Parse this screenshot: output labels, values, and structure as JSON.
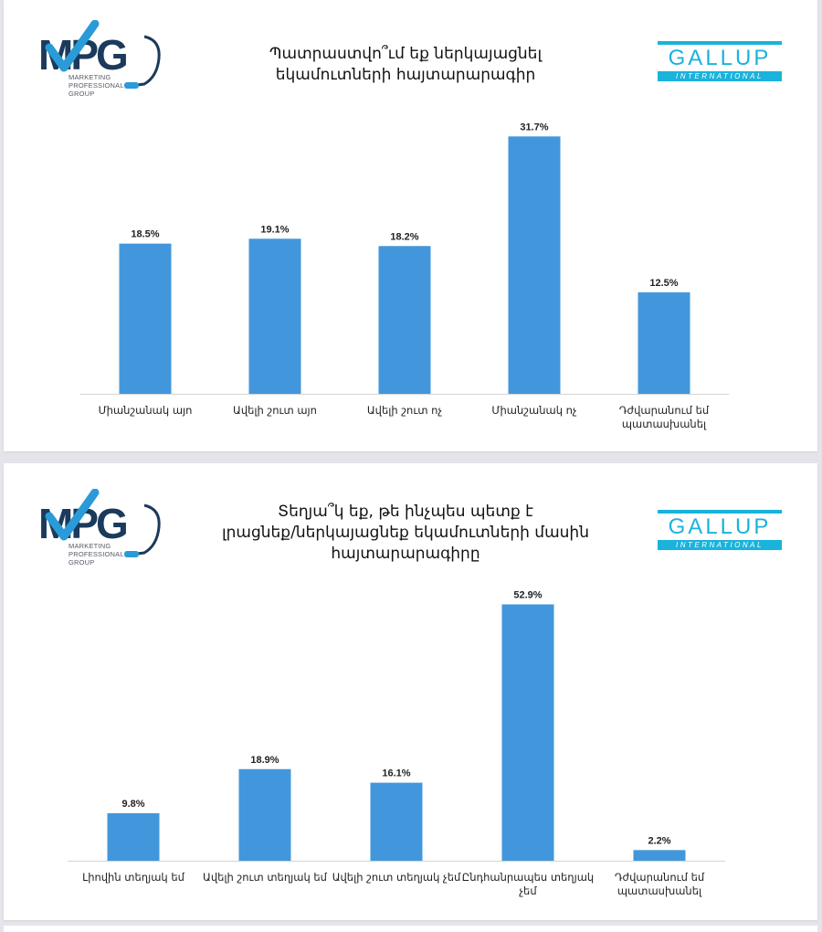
{
  "logos": {
    "mpg": {
      "mark": "MPG",
      "tagline": [
        "MARKETING",
        "PROFESSIONAL",
        "GROUP"
      ]
    },
    "gallup": {
      "name": "GALLUP",
      "sub": "INTERNATIONAL"
    }
  },
  "colors": {
    "bar": "#4297dc",
    "gallup": "#19b3dc",
    "mpg_navy": "#1b3a5c"
  },
  "chart_data": [
    {
      "type": "bar",
      "title": "Պատրաստվո՞ւմ եք ներկայացնել եկամուտների հայտարարագիր",
      "title_lines": [
        "Պատրաստվո՞ւմ եք ներկայացնել",
        "եկամուտների հայտարարագիր"
      ],
      "categories": [
        "Միանշանակ այո",
        "Ավելի շուտ այո",
        "Ավելի շուտ ոչ",
        "Միանշանակ ոչ",
        "Դժվարանում եմ պատասխանել"
      ],
      "category_lines": [
        [
          "Միանշանակ այո"
        ],
        [
          "Ավելի շուտ այո"
        ],
        [
          "Ավելի շուտ ոչ"
        ],
        [
          "Միանշանակ ոչ"
        ],
        [
          "Դժվարանում եմ",
          "պատասխանել"
        ]
      ],
      "values": [
        18.5,
        19.1,
        18.2,
        31.7,
        12.5
      ],
      "value_labels": [
        "18.5%",
        "19.1%",
        "18.2%",
        "31.7%",
        "12.5%"
      ],
      "unit": "%",
      "ylim": [
        0,
        35
      ],
      "grid": false,
      "legend": "none"
    },
    {
      "type": "bar",
      "title": "Տեղյա՞կ եք, թե ինչպես պետք է լրացնեք/ներկայացնեք եկամուտների մասին հայտարարագիրը",
      "title_lines": [
        "Տեղյա՞կ եք, թե ինչպես պետք է",
        "լրացնեք/ներկայացնեք եկամուտների մասին",
        "հայտարարագիրը"
      ],
      "categories": [
        "Լիովին տեղյակ եմ",
        "Ավելի շուտ տեղյակ եմ",
        "Ավելի շուտ տեղյակ չեմ",
        "Ընդհանրապես տեղյակ չեմ",
        "Դժվարանում եմ պատասխանել"
      ],
      "category_lines": [
        [
          "Լիովին տեղյակ եմ"
        ],
        [
          "Ավելի շուտ տեղյակ եմ"
        ],
        [
          "Ավելի շուտ տեղյակ չեմ"
        ],
        [
          "Ընդհանրապես տեղյակ",
          "չեմ"
        ],
        [
          "Դժվարանում եմ",
          "պատասխանել"
        ]
      ],
      "values": [
        9.8,
        18.9,
        16.1,
        52.9,
        2.2
      ],
      "value_labels": [
        "9.8%",
        "18.9%",
        "16.1%",
        "52.9%",
        "2.2%"
      ],
      "unit": "%",
      "ylim": [
        0,
        56
      ],
      "grid": false,
      "legend": "none"
    }
  ]
}
